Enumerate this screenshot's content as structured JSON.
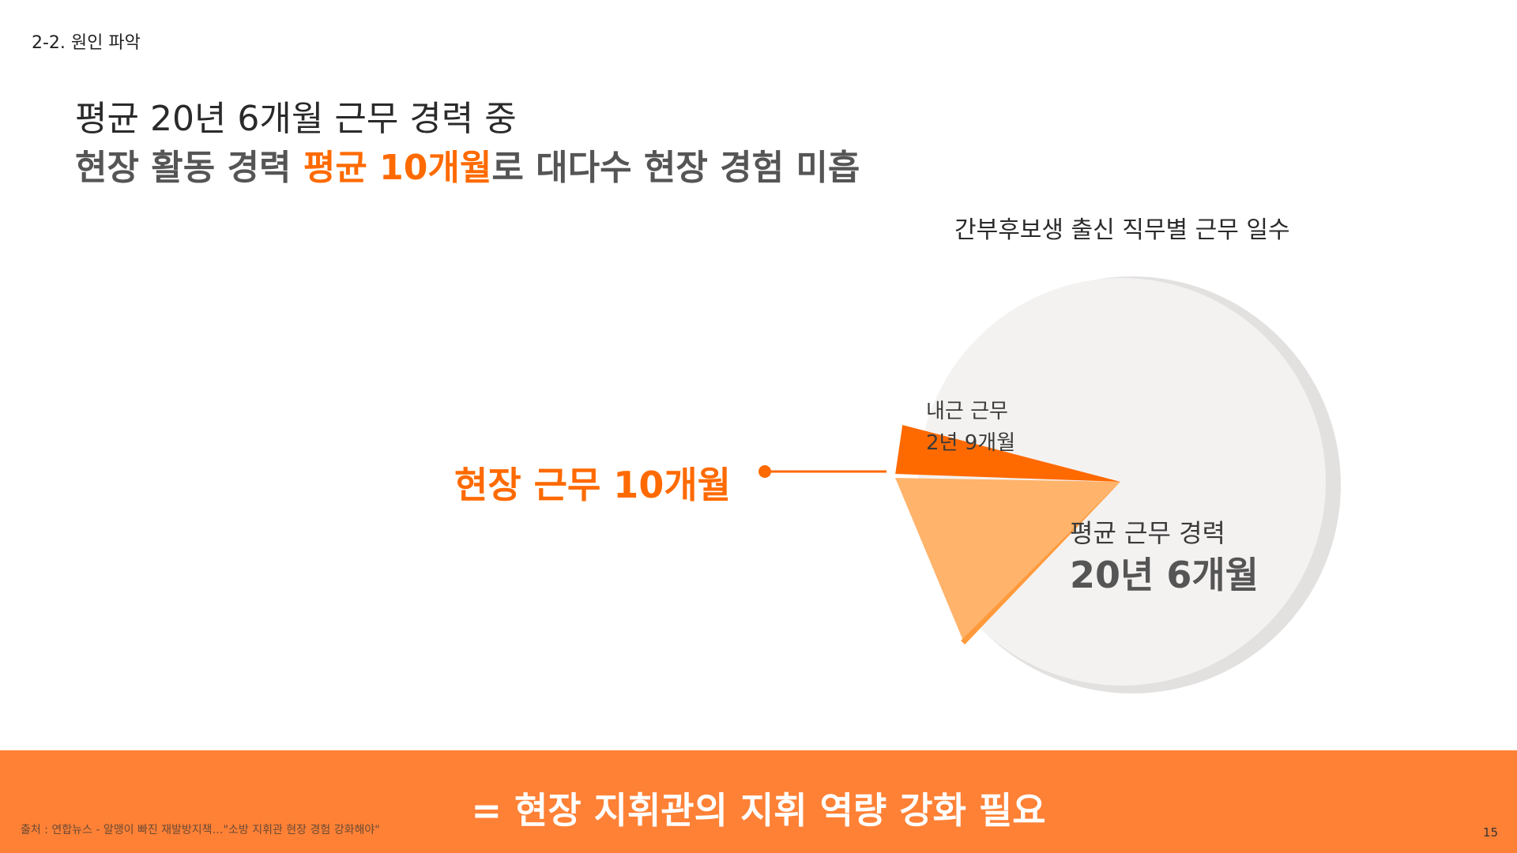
{
  "section": "2-2. 원인 파악",
  "headline": {
    "line1": "평균 20년 6개월 근무 경력 중",
    "line2_prefix": "현장 활동 경력 ",
    "line2_highlight": "평균 10개월",
    "line2_suffix": "로 대다수 현장 경험 미흡"
  },
  "chart_data": {
    "type": "pie",
    "title": "간부후보생 출신 직무별 근무 일수",
    "total_label": "평균 근무 경력",
    "total_value_label": "20년 6개월",
    "total_months": 246,
    "slices": [
      {
        "name": "현장 근무",
        "value_label": "10개월",
        "months": 10,
        "color": "#ff6a00"
      },
      {
        "name": "내근 근무",
        "value_label": "2년 9개월",
        "months": 33,
        "color": "#ffb36b"
      }
    ],
    "callout": "현장 근무 10개월"
  },
  "inner_label": {
    "line1": "내근 근무",
    "line2": "2년 9개월"
  },
  "colors": {
    "accent": "#ff6a00",
    "band": "#fe8136",
    "pie_base": "#f4f2f1",
    "pie_shadow": "#e3e1e0"
  },
  "conclusion": "= 현장 지휘관의 지휘 역량 강화 필요",
  "source": "출처 : 연합뉴스 - 알맹이 빠진 재발방지책…\"소방 지휘관 현장 경험 강화해야\"",
  "page_number": "15"
}
